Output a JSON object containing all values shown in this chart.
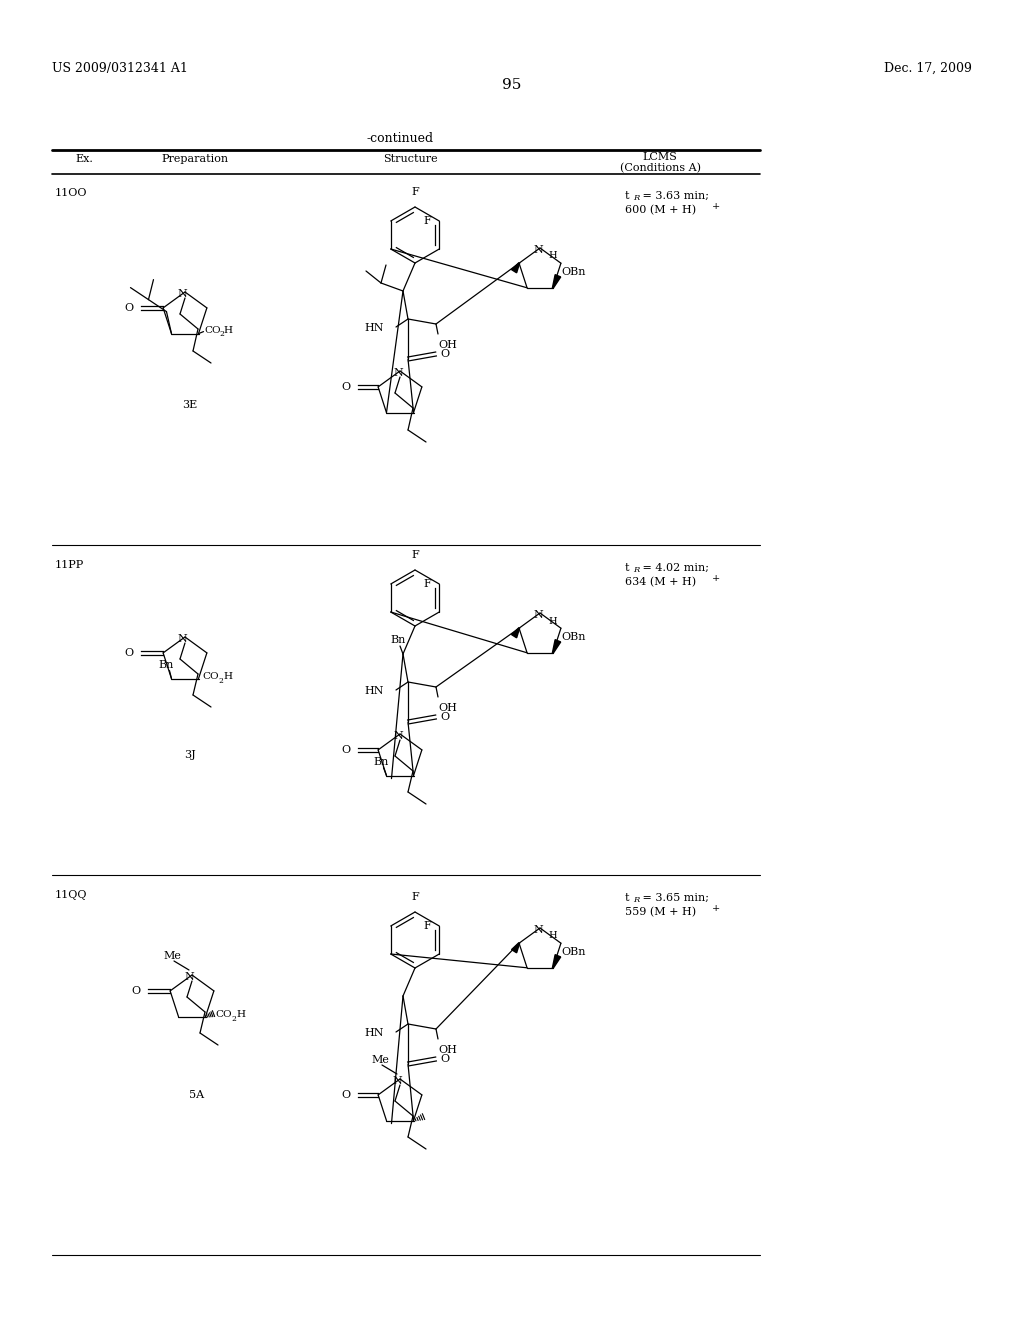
{
  "page_number": "95",
  "patent_number": "US 2009/0312341 A1",
  "patent_date": "Dec. 17, 2009",
  "continued_label": "-continued",
  "col_ex": "Ex.",
  "col_prep": "Preparation",
  "col_struct": "Structure",
  "col_lcms1": "LCMS",
  "col_lcms2": "(Conditions A)",
  "rows": [
    {
      "ex": "11OO",
      "prep": "3E",
      "lcms_line1": "t_R = 3.63 min;",
      "lcms_line2": "600 (M + H)+"
    },
    {
      "ex": "11PP",
      "prep": "3J",
      "lcms_line1": "t_R = 4.02 min;",
      "lcms_line2": "634 (M + H)+"
    },
    {
      "ex": "11QQ",
      "prep": "5A",
      "lcms_line1": "t_R = 3.65 min;",
      "lcms_line2": "559 (M + H)+"
    }
  ],
  "bg": "#ffffff",
  "fg": "#000000"
}
